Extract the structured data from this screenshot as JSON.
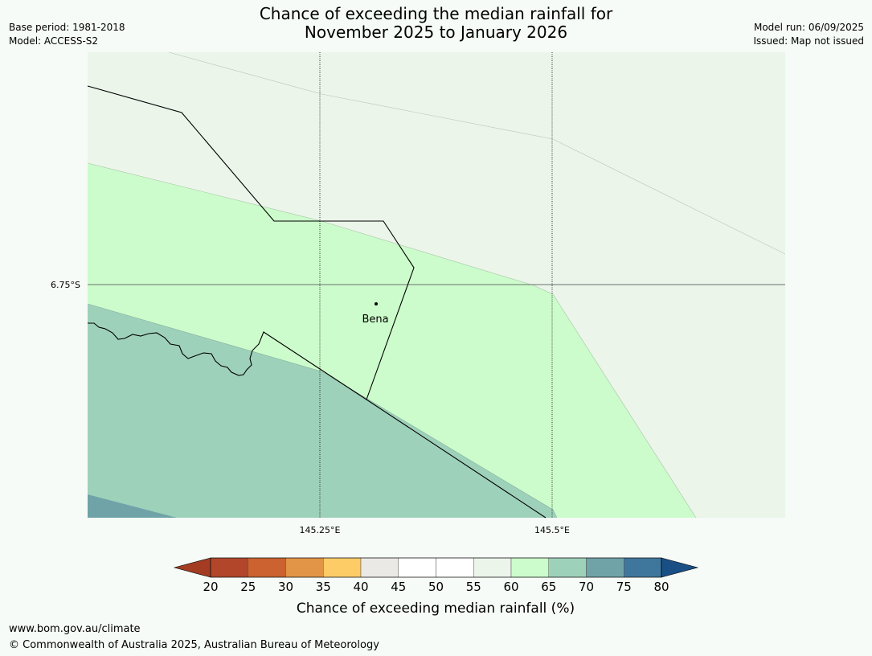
{
  "title": {
    "line1": "Chance of exceeding the median rainfall for",
    "line2": "November 2025 to January 2026"
  },
  "meta": {
    "base_period": "Base period: 1981-2018",
    "model": "Model: ACCESS-S2",
    "model_run": "Model run: 06/09/2025",
    "issued": "Issued: Map not issued"
  },
  "map": {
    "lat_label": "6.75°S",
    "lon_labels": [
      "145.25°E",
      "145.5°E"
    ],
    "place_name": "Bena",
    "colors": {
      "c60_65": "#ebf5ea",
      "c65_70": "#ccfccb",
      "c70_75": "#9ed1ba",
      "c75_80": "#6fa3a8"
    }
  },
  "colorbar": {
    "ticks": [
      "20",
      "25",
      "30",
      "35",
      "40",
      "45",
      "50",
      "55",
      "60",
      "65",
      "70",
      "75",
      "80"
    ],
    "colors": [
      "#a33c22",
      "#b1462a",
      "#cb622f",
      "#e29546",
      "#fdcc67",
      "#ebe9e5",
      "#ffffff",
      "#ffffff",
      "#ebf5ea",
      "#ccfccb",
      "#9ed1ba",
      "#6fa3a8",
      "#3f779c",
      "#1a4f86"
    ],
    "label": "Chance of exceeding median rainfall (%)"
  },
  "footer": {
    "url": "www.bom.gov.au/climate",
    "copyright": "© Commonwealth of Australia 2025, Australian Bureau of Meteorology"
  }
}
